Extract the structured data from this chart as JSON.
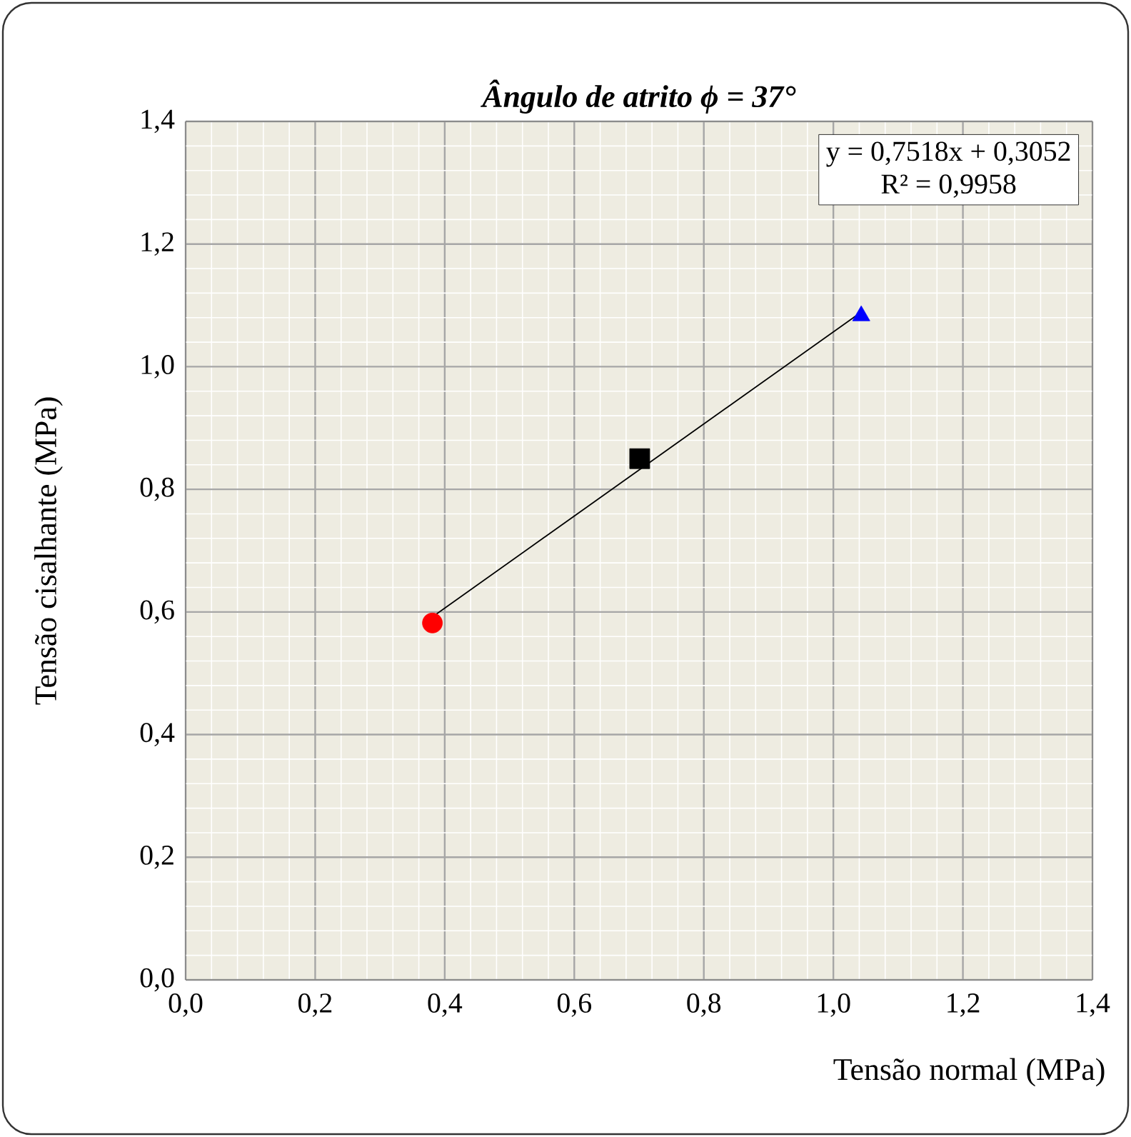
{
  "chart_data": {
    "type": "scatter",
    "title": "Ângulo de atrito ϕ = 37°",
    "xlabel": "Tensão normal (MPa)",
    "ylabel": "Tensão cisalhante (MPa)",
    "annotations": [
      "y = 0,7518x + 0,3052",
      "R² = 0,9958"
    ],
    "series": [
      {
        "type": "line",
        "color": "#000000",
        "marker": "none",
        "x": [
          0.381,
          1.043
        ],
        "values": [
          0.592,
          1.089
        ]
      },
      {
        "color": "#ff0000",
        "marker": "circle",
        "x": [
          0.381
        ],
        "values": [
          0.582
        ]
      },
      {
        "color": "#000000",
        "marker": "square",
        "x": [
          0.701
        ],
        "values": [
          0.85
        ]
      },
      {
        "color": "#0000ff",
        "marker": "triangle",
        "x": [
          1.043
        ],
        "values": [
          1.083
        ]
      }
    ],
    "xlim": [
      0,
      1.4
    ],
    "ylim": [
      0,
      1.4
    ],
    "grid": true,
    "xticks": [
      {
        "value": 0,
        "label": "0,0"
      },
      {
        "value": 0.2,
        "label": "0,2"
      },
      {
        "value": 0.4,
        "label": "0,4"
      },
      {
        "value": 0.6,
        "label": "0,6"
      },
      {
        "value": 0.8,
        "label": "0,8"
      },
      {
        "value": 1.0,
        "label": "1,0"
      },
      {
        "value": 1.2,
        "label": "1,2"
      },
      {
        "value": 1.4,
        "label": "1,4"
      }
    ],
    "yticks": [
      {
        "value": 0,
        "label": "0,0"
      },
      {
        "value": 0.2,
        "label": "0,2"
      },
      {
        "value": 0.4,
        "label": "0,4"
      },
      {
        "value": 0.6,
        "label": "0,6"
      },
      {
        "value": 0.8,
        "label": "0,8"
      },
      {
        "value": 1.0,
        "label": "1,0"
      },
      {
        "value": 1.2,
        "label": "1,2"
      },
      {
        "value": 1.4,
        "label": "1,4"
      }
    ]
  }
}
